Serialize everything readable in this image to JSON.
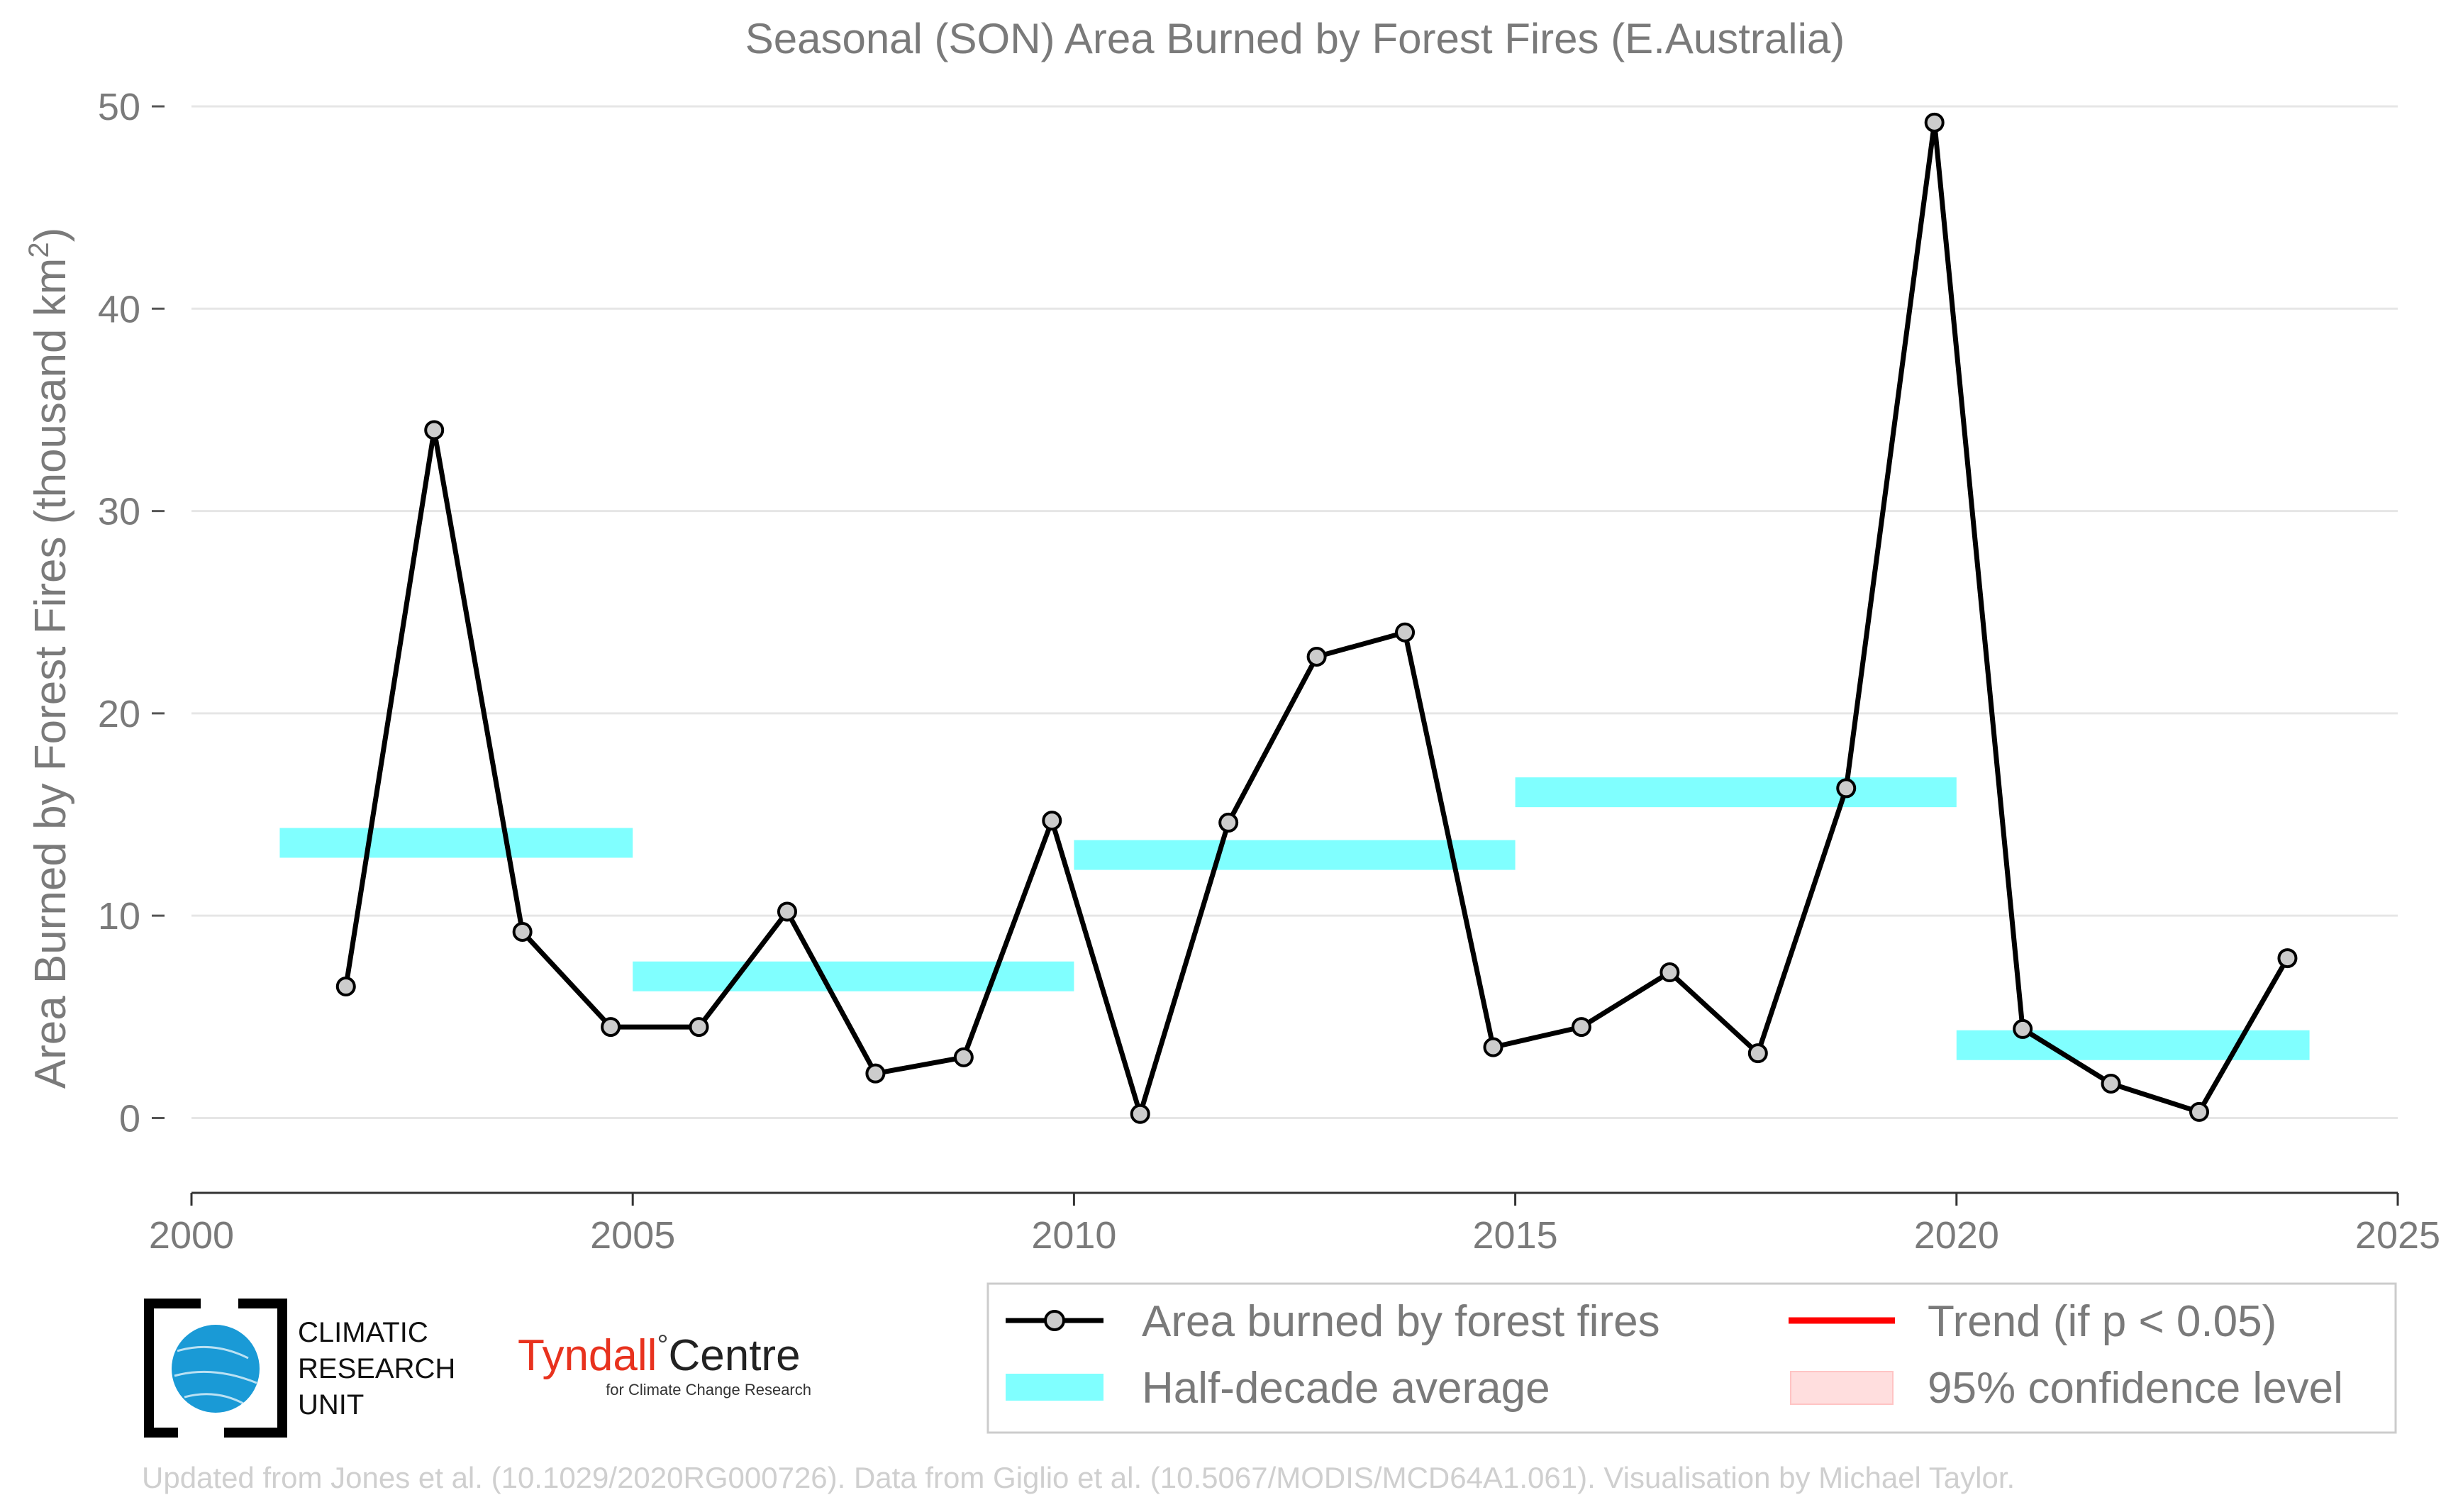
{
  "chart_data": {
    "type": "line",
    "title": "Seasonal (SON) Area Burned by Forest Fires (E.Australia)",
    "xlabel": "",
    "ylabel": "Area Burned by Forest Fires (thousand km",
    "ylabel_sup": "2",
    "ylabel_end": ")",
    "xlim": [
      2000,
      2025
    ],
    "ylim": [
      -3.7,
      50
    ],
    "x_ticks": [
      2000,
      2005,
      2010,
      2015,
      2020,
      2025
    ],
    "y_ticks": [
      0,
      10,
      20,
      30,
      40,
      50
    ],
    "grid": "horizontal",
    "series": [
      {
        "name": "Area burned by forest fires",
        "color": "#000000",
        "marker_fill": "#cccccc",
        "x": [
          2001.75,
          2002.75,
          2003.75,
          2004.75,
          2005.75,
          2006.75,
          2007.75,
          2008.75,
          2009.75,
          2010.75,
          2011.75,
          2012.75,
          2013.75,
          2014.75,
          2015.75,
          2016.75,
          2017.75,
          2018.75,
          2019.75,
          2020.75,
          2021.75,
          2022.75,
          2023.75
        ],
        "y": [
          6.5,
          34.0,
          9.2,
          4.5,
          4.5,
          10.2,
          2.2,
          3.0,
          14.7,
          0.2,
          14.6,
          22.8,
          24.0,
          3.5,
          4.5,
          7.2,
          3.2,
          16.3,
          49.2,
          4.4,
          1.7,
          0.3,
          7.9
        ]
      }
    ],
    "half_decade_averages": {
      "name": "Half-decade average",
      "color": "#80ffff",
      "segments": [
        {
          "x0": 2001,
          "x1": 2005,
          "value": 13.6
        },
        {
          "x0": 2005,
          "x1": 2010,
          "value": 7.0
        },
        {
          "x0": 2010,
          "x1": 2015,
          "value": 13.0
        },
        {
          "x0": 2015,
          "x1": 2020,
          "value": 16.1
        },
        {
          "x0": 2020,
          "x1": 2024,
          "value": 3.6
        }
      ]
    },
    "legend": {
      "placement": "bottom-right",
      "entries": [
        {
          "label": "Area burned by forest fires",
          "kind": "line-marker",
          "color": "#000000"
        },
        {
          "label": "Trend (if p < 0.05)",
          "kind": "line",
          "color": "#ff0000"
        },
        {
          "label": "Half-decade average",
          "kind": "band",
          "color": "#80ffff"
        },
        {
          "label": "95% confidence level",
          "kind": "patch",
          "color": "#ffdede"
        }
      ]
    }
  },
  "logos": {
    "cru_line1": "CLIMATIC",
    "cru_line2": "RESEARCH",
    "cru_line3": "UNIT",
    "tyndall_main": "Tyndall",
    "tyndall_degree": "°",
    "tyndall_centre": "Centre",
    "tyndall_sub": "for Climate Change Research",
    "tyndall_color": "#e8321e",
    "cru_globe_color": "#1a9ad6"
  },
  "credit": "Updated from Jones et al. (10.1029/2020RG000726). Data from Giglio et al. (10.5067/MODIS/MCD64A1.061). Visualisation by Michael Taylor."
}
